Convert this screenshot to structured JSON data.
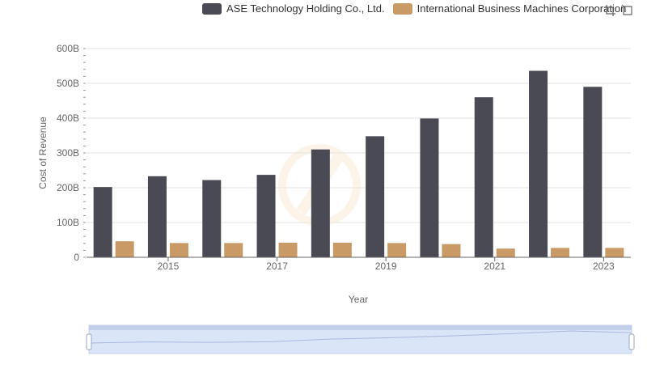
{
  "legend": {
    "items": [
      {
        "label": "ASE Technology Holding Co., Ltd.",
        "color": "#4a4a55"
      },
      {
        "label": "International Business Machines Corporation",
        "color": "#c99a65"
      }
    ]
  },
  "toolbox": {
    "icons": [
      "zoom-icon",
      "restore-icon"
    ]
  },
  "chart_data": {
    "type": "bar",
    "xlabel": "Year",
    "ylabel": "Cost of Revenue",
    "ylim": [
      0,
      600
    ],
    "y_ticks": [
      "0",
      "100B",
      "200B",
      "300B",
      "400B",
      "500B",
      "600B"
    ],
    "x_tick_labels": [
      "2015",
      "2017",
      "2019",
      "2021",
      "2023"
    ],
    "categories": [
      "2014",
      "2015",
      "2016",
      "2017",
      "2018",
      "2019",
      "2020",
      "2021",
      "2022",
      "2023"
    ],
    "series": [
      {
        "name": "ASE Technology Holding Co., Ltd.",
        "color": "#4a4a55",
        "values": [
          202,
          233,
          222,
          237,
          310,
          348,
          399,
          460,
          536,
          490
        ]
      },
      {
        "name": "International Business Machines Corporation",
        "color": "#c99a65",
        "values": [
          46,
          41,
          41,
          42,
          42,
          41,
          38,
          25,
          27,
          27
        ]
      }
    ],
    "grid": true,
    "legend_position": "top",
    "data_zoom": true
  }
}
